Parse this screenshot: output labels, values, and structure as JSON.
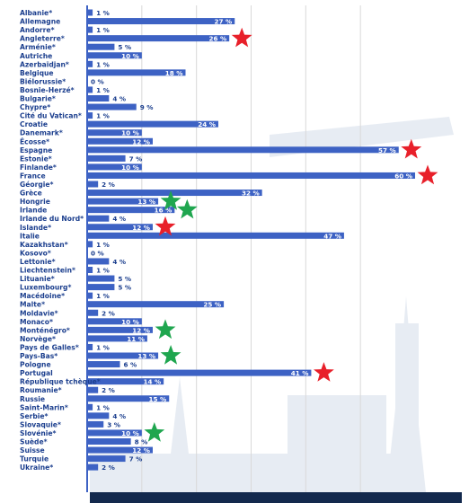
{
  "chart_data": {
    "type": "bar",
    "orientation": "horizontal",
    "value_suffix": " %",
    "categories": [
      "Albanie*",
      "Allemagne",
      "Andorre*",
      "Angleterre*",
      "Arménie*",
      "Autriche",
      "Azerbaïdjan*",
      "Belgique",
      "Biélorussie*",
      "Bosnie-Herzé*",
      "Bulgarie*",
      "Chypre*",
      "Cité du Vatican*",
      "Croatie",
      "Danemark*",
      "Écosse*",
      "Espagne",
      "Estonie*",
      "Finlande*",
      "France",
      "Géorgie*",
      "Grèce",
      "Hongrie",
      "Irlande",
      "Irlande du Nord*",
      "Islande*",
      "Italie",
      "Kazakhstan*",
      "Kosovo*",
      "Lettonie*",
      "Liechtenstein*",
      "Lituanie*",
      "Luxembourg*",
      "Macédoine*",
      "Malte*",
      "Moldavie*",
      "Monaco*",
      "Monténégro*",
      "Norvège*",
      "Pays de Galles*",
      "Pays-Bas*",
      "Pologne",
      "Portugal",
      "République tchèque*",
      "Roumanie*",
      "Russie",
      "Saint-Marin*",
      "Serbie*",
      "Slovaquie*",
      "Slovénie*",
      "Suède*",
      "Suisse",
      "Turquie",
      "Ukraine*"
    ],
    "values": [
      1,
      27,
      1,
      26,
      5,
      10,
      1,
      18,
      0,
      1,
      4,
      9,
      1,
      24,
      10,
      12,
      57,
      7,
      10,
      60,
      2,
      32,
      13,
      16,
      4,
      12,
      47,
      1,
      0,
      4,
      1,
      5,
      5,
      1,
      25,
      2,
      10,
      12,
      11,
      1,
      13,
      6,
      41,
      14,
      2,
      15,
      1,
      4,
      3,
      10,
      8,
      12,
      7,
      2
    ],
    "xlim": [
      0,
      60
    ],
    "grid": true,
    "colors": {
      "bar": "#3d62c4",
      "label": "#1c3f8e",
      "bar_text": "#ffffff",
      "red_star": "#e8202a",
      "green_star": "#1fa64f",
      "background_illustration": "#dfe6ef"
    },
    "annotations": {
      "red_star": [
        "Angleterre*",
        "Espagne",
        "France",
        "Islande*",
        "Portugal"
      ],
      "green_star": [
        "Hongrie",
        "Irlande",
        "Monténégro*",
        "Pays-Bas*",
        "Slovénie*"
      ]
    }
  }
}
